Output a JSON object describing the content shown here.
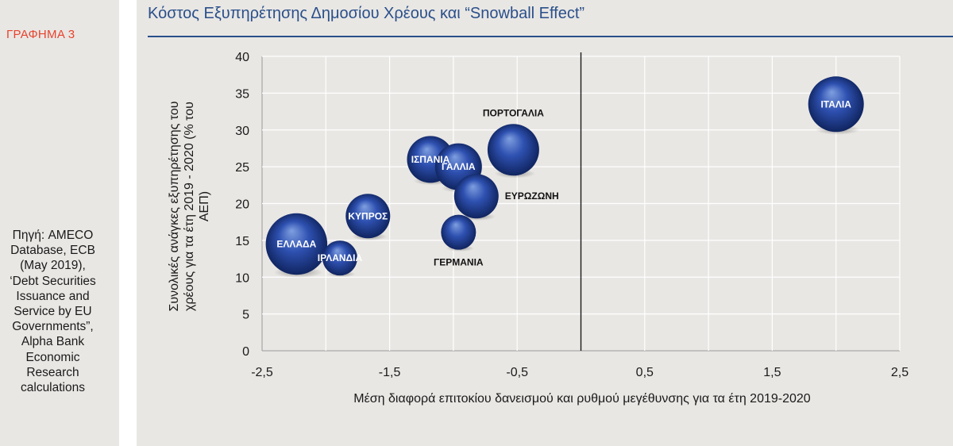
{
  "sidebar": {
    "figure_label": "ΓΡΑΦΗΜΑ 3",
    "source_lines": [
      "Πηγή: AMECO",
      "Database, ECB",
      "(May 2019),",
      "‘Debt Securities",
      "Issuance and",
      "Service by EU",
      "Governments”,",
      "Alpha Bank",
      "Economic",
      "Research",
      "calculations"
    ]
  },
  "colors": {
    "title": "#2a4f8a",
    "figure_label": "#e8432e",
    "bubble_light": "#7f9fe0",
    "bubble_mid": "#2e50b0",
    "bubble_dark": "#0c1f55"
  },
  "chart_data": {
    "type": "bubble",
    "title": "Κόστος Εξυπηρέτησης Δημοσίου Χρέους και “Snowball Effect”",
    "xlabel": "Μέση  διαφορά επιτοκίου δανεισμού και ρυθμού μεγέθυνσης  για τα έτη 2019-2020",
    "ylabel_lines": [
      "Συνολικές ανάγκες εξυπηρέτησης του",
      "χρέους για τα  έτη 2019 - 2020 (% του",
      "ΑΕΠ)"
    ],
    "xlim": [
      -2.5,
      2.5
    ],
    "ylim": [
      0,
      40
    ],
    "x_ticks": [
      "-2,5",
      "-1,5",
      "-0,5",
      "0,5",
      "1,5",
      "2,5"
    ],
    "x_tick_values": [
      -2.5,
      -1.5,
      -0.5,
      0.5,
      1.5,
      2.5
    ],
    "y_ticks": [
      0,
      5,
      10,
      15,
      20,
      25,
      30,
      35,
      40
    ],
    "x_gridlines": [
      -2.0,
      -1.5,
      -1.0,
      -0.5,
      0.5,
      1.0,
      1.5,
      2.0,
      2.5
    ],
    "grid": true,
    "reference_line_x": 0,
    "points": [
      {
        "label": "ΕΛΛΑΔΑ",
        "x": -2.23,
        "y": 14.5,
        "size": 1.55,
        "label_pos": "inside",
        "label_color": "white"
      },
      {
        "label": "ΙΡΛΑΝΔΙΑ",
        "x": -1.89,
        "y": 12.6,
        "size": 0.88,
        "label_pos": "inside",
        "label_color": "white"
      },
      {
        "label": "ΚΥΠΡΟΣ",
        "x": -1.67,
        "y": 18.3,
        "size": 1.12,
        "label_pos": "inside",
        "label_color": "white"
      },
      {
        "label": "ΙΣΠΑΝΙΑ",
        "x": -1.18,
        "y": 26.0,
        "size": 1.18,
        "label_pos": "inside",
        "label_color": "white"
      },
      {
        "label": "ΓΑΛΛΙΑ",
        "x": -0.96,
        "y": 25.0,
        "size": 1.18,
        "label_pos": "inside",
        "label_color": "white"
      },
      {
        "label": "ΠΟΡΤΟΓΑΛΙΑ",
        "x": -0.53,
        "y": 27.3,
        "size": 1.3,
        "label_pos": "above",
        "label_color": "black"
      },
      {
        "label": "ΕΥΡΩΖΩΝΗ",
        "x": -0.82,
        "y": 21.0,
        "size": 1.12,
        "label_pos": "right",
        "label_color": "black"
      },
      {
        "label": "ΓΕΡΜΑΝΙΑ",
        "x": -0.96,
        "y": 16.1,
        "size": 0.88,
        "label_pos": "below",
        "label_color": "black"
      },
      {
        "label": "ΙΤΑΛΙΑ",
        "x": 2.0,
        "y": 33.5,
        "size": 1.4,
        "label_pos": "inside",
        "label_color": "white"
      }
    ]
  }
}
